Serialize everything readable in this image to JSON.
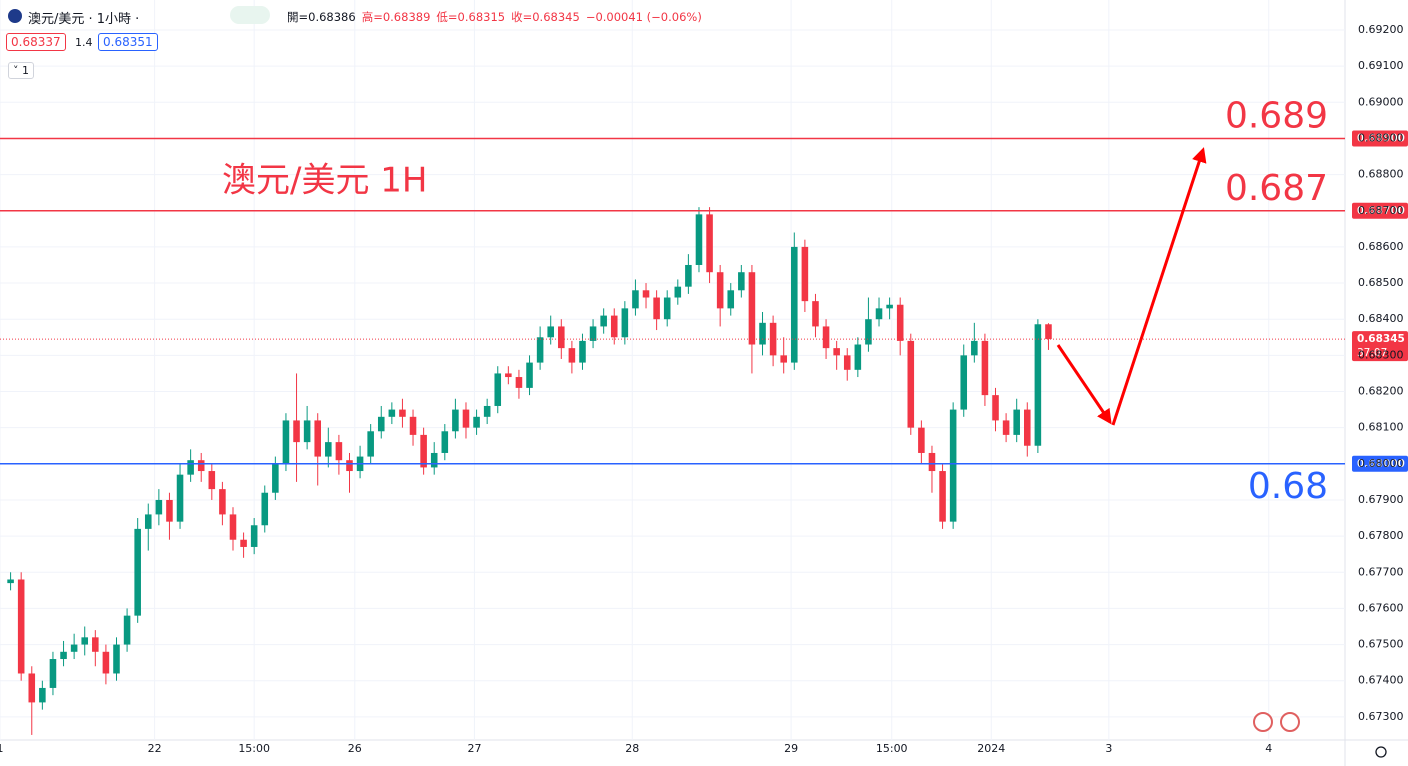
{
  "header": {
    "symbol": "澳元/美元 · 1小時 ·",
    "ohlc": [
      "開=0.68386",
      "高=0.68389",
      "低=0.68315",
      "收=0.68345",
      "−0.00041 (−0.06%)"
    ],
    "bid": "0.68337",
    "spread": "1.4",
    "ask": "0.68351",
    "indicator": "1"
  },
  "chart_data": {
    "type": "candlestick",
    "annotation": "澳元/美元 1H",
    "up_color": "#089981",
    "down_color": "#f23645",
    "grid": true,
    "x": [
      1,
      2,
      3,
      4,
      5,
      6,
      7,
      8,
      9,
      10,
      11,
      12,
      13,
      14,
      15,
      16,
      17,
      18,
      19,
      20,
      21,
      22,
      23,
      24,
      25,
      26,
      27,
      28,
      29,
      30,
      31,
      32,
      33,
      34,
      35,
      36,
      37,
      38,
      39,
      40,
      41,
      42,
      43,
      44,
      45,
      46,
      47,
      48,
      49,
      50,
      51,
      52,
      53,
      54,
      55,
      56,
      57,
      58,
      59,
      60,
      61,
      62,
      63,
      64,
      65,
      66,
      67,
      68,
      69,
      70,
      71,
      72,
      73,
      74,
      75,
      76,
      77,
      78,
      79,
      80,
      81,
      82,
      83,
      84,
      85,
      86,
      87,
      88,
      89,
      90,
      91,
      92,
      93,
      94,
      95,
      96,
      97,
      98,
      99
    ],
    "open": [
      0.6767,
      0.6768,
      0.6742,
      0.6734,
      0.6738,
      0.6746,
      0.6748,
      0.675,
      0.6752,
      0.6748,
      0.6742,
      0.675,
      0.6758,
      0.6782,
      0.6786,
      0.679,
      0.6784,
      0.6797,
      0.6801,
      0.6798,
      0.6793,
      0.6786,
      0.6779,
      0.6777,
      0.6783,
      0.6792,
      0.68,
      0.6812,
      0.6806,
      0.6812,
      0.6802,
      0.6806,
      0.6801,
      0.6798,
      0.6802,
      0.6809,
      0.6813,
      0.6815,
      0.6813,
      0.6808,
      0.6799,
      0.6803,
      0.6809,
      0.6815,
      0.681,
      0.6813,
      0.6816,
      0.6825,
      0.6824,
      0.6821,
      0.6828,
      0.6835,
      0.6838,
      0.6832,
      0.6828,
      0.6834,
      0.6838,
      0.6841,
      0.6835,
      0.6843,
      0.6848,
      0.6846,
      0.684,
      0.6846,
      0.6849,
      0.6855,
      0.6869,
      0.6853,
      0.6843,
      0.6848,
      0.6853,
      0.6833,
      0.6839,
      0.683,
      0.6828,
      0.686,
      0.6845,
      0.6838,
      0.6832,
      0.683,
      0.6826,
      0.6833,
      0.684,
      0.6843,
      0.6844,
      0.6834,
      0.681,
      0.6803,
      0.6798,
      0.6784,
      0.6815,
      0.683,
      0.6834,
      0.6819,
      0.6812,
      0.6808,
      0.6815,
      0.6805,
      0.68386
    ],
    "high": [
      0.677,
      0.677,
      0.6744,
      0.674,
      0.6748,
      0.6751,
      0.6753,
      0.6755,
      0.6754,
      0.675,
      0.6752,
      0.676,
      0.6785,
      0.6789,
      0.6793,
      0.6792,
      0.68,
      0.6804,
      0.6803,
      0.68,
      0.6795,
      0.6788,
      0.6781,
      0.6785,
      0.6794,
      0.6802,
      0.6814,
      0.6825,
      0.6816,
      0.6814,
      0.681,
      0.6808,
      0.6803,
      0.6805,
      0.6811,
      0.6816,
      0.6817,
      0.6818,
      0.6815,
      0.681,
      0.6806,
      0.6811,
      0.6818,
      0.6817,
      0.6815,
      0.6818,
      0.6827,
      0.6827,
      0.6826,
      0.683,
      0.6838,
      0.6841,
      0.684,
      0.6834,
      0.6836,
      0.684,
      0.6843,
      0.6843,
      0.6845,
      0.6851,
      0.685,
      0.6848,
      0.6848,
      0.6851,
      0.6858,
      0.6871,
      0.6871,
      0.6855,
      0.685,
      0.6855,
      0.6855,
      0.6842,
      0.6841,
      0.6835,
      0.6864,
      0.6862,
      0.6847,
      0.684,
      0.6834,
      0.6832,
      0.6835,
      0.6846,
      0.6846,
      0.6846,
      0.6846,
      0.6836,
      0.6812,
      0.6805,
      0.68,
      0.6817,
      0.6833,
      0.6839,
      0.6836,
      0.6821,
      0.6814,
      0.6818,
      0.6817,
      0.684,
      0.68389
    ],
    "low": [
      0.6765,
      0.674,
      0.6725,
      0.6732,
      0.6736,
      0.6744,
      0.6746,
      0.6747,
      0.6744,
      0.6739,
      0.674,
      0.6748,
      0.6756,
      0.6776,
      0.6783,
      0.6779,
      0.6782,
      0.6795,
      0.6795,
      0.679,
      0.6783,
      0.6776,
      0.6774,
      0.6775,
      0.6781,
      0.679,
      0.6798,
      0.6795,
      0.6804,
      0.6794,
      0.6799,
      0.6797,
      0.6792,
      0.6796,
      0.68,
      0.6807,
      0.6811,
      0.681,
      0.6805,
      0.6797,
      0.6797,
      0.6801,
      0.6807,
      0.6807,
      0.6808,
      0.6811,
      0.6814,
      0.6822,
      0.6818,
      0.6819,
      0.6826,
      0.6833,
      0.6829,
      0.6825,
      0.6826,
      0.6832,
      0.6836,
      0.6833,
      0.6833,
      0.6841,
      0.6843,
      0.6837,
      0.6838,
      0.6844,
      0.6847,
      0.6853,
      0.685,
      0.6838,
      0.6841,
      0.6846,
      0.6825,
      0.683,
      0.6827,
      0.6825,
      0.6826,
      0.6842,
      0.6835,
      0.6829,
      0.6826,
      0.6823,
      0.6824,
      0.6831,
      0.6838,
      0.684,
      0.683,
      0.6808,
      0.68,
      0.6792,
      0.6782,
      0.6782,
      0.6813,
      0.6828,
      0.6816,
      0.6809,
      0.6806,
      0.6806,
      0.6802,
      0.6803,
      0.68315
    ],
    "close": [
      0.6768,
      0.6742,
      0.6734,
      0.6738,
      0.6746,
      0.6748,
      0.675,
      0.6752,
      0.6748,
      0.6742,
      0.675,
      0.6758,
      0.6782,
      0.6786,
      0.679,
      0.6784,
      0.6797,
      0.6801,
      0.6798,
      0.6793,
      0.6786,
      0.6779,
      0.6777,
      0.6783,
      0.6792,
      0.68,
      0.6812,
      0.6806,
      0.6812,
      0.6802,
      0.6806,
      0.6801,
      0.6798,
      0.6802,
      0.6809,
      0.6813,
      0.6815,
      0.6813,
      0.6808,
      0.6799,
      0.6803,
      0.6809,
      0.6815,
      0.681,
      0.6813,
      0.6816,
      0.6825,
      0.6824,
      0.6821,
      0.6828,
      0.6835,
      0.6838,
      0.6832,
      0.6828,
      0.6834,
      0.6838,
      0.6841,
      0.6835,
      0.6843,
      0.6848,
      0.6846,
      0.684,
      0.6846,
      0.6849,
      0.6855,
      0.6869,
      0.6853,
      0.6843,
      0.6848,
      0.6853,
      0.6833,
      0.6839,
      0.683,
      0.6828,
      0.686,
      0.6845,
      0.6838,
      0.6832,
      0.683,
      0.6826,
      0.6833,
      0.684,
      0.6843,
      0.6844,
      0.6834,
      0.681,
      0.6803,
      0.6798,
      0.6784,
      0.6815,
      0.683,
      0.6834,
      0.6819,
      0.6812,
      0.6808,
      0.6815,
      0.6805,
      0.68386,
      0.68345
    ],
    "xlim": [
      0,
      127
    ],
    "xticks": [
      {
        "value": 0,
        "label": "1"
      },
      {
        "value": 14.6,
        "label": "22"
      },
      {
        "value": 24,
        "label": "15:00"
      },
      {
        "value": 33.5,
        "label": "26"
      },
      {
        "value": 44.8,
        "label": "27"
      },
      {
        "value": 59.7,
        "label": "28"
      },
      {
        "value": 74.7,
        "label": "29"
      },
      {
        "value": 84.2,
        "label": "15:00"
      },
      {
        "value": 93.6,
        "label": "2024"
      },
      {
        "value": 104.7,
        "label": "3"
      },
      {
        "value": 119.8,
        "label": "4"
      }
    ],
    "ylim": [
      0.67236,
      0.69283
    ],
    "yticks": [
      {
        "value": 0.692,
        "label": "0.69200"
      },
      {
        "value": 0.691,
        "label": "0.69100"
      },
      {
        "value": 0.69,
        "label": "0.69000"
      },
      {
        "value": 0.689,
        "label": "0.68900"
      },
      {
        "value": 0.688,
        "label": "0.68800"
      },
      {
        "value": 0.687,
        "label": "0.68700"
      },
      {
        "value": 0.686,
        "label": "0.68600"
      },
      {
        "value": 0.685,
        "label": "0.68500"
      },
      {
        "value": 0.684,
        "label": "0.68400"
      },
      {
        "value": 0.683,
        "label": "0.68300"
      },
      {
        "value": 0.682,
        "label": "0.68200"
      },
      {
        "value": 0.681,
        "label": "0.68100"
      },
      {
        "value": 0.68,
        "label": "0.68000"
      },
      {
        "value": 0.679,
        "label": "0.67900"
      },
      {
        "value": 0.678,
        "label": "0.67800"
      },
      {
        "value": 0.677,
        "label": "0.67700"
      },
      {
        "value": 0.676,
        "label": "0.67600"
      },
      {
        "value": 0.675,
        "label": "0.67500"
      },
      {
        "value": 0.674,
        "label": "0.67400"
      },
      {
        "value": 0.673,
        "label": "0.67300"
      }
    ],
    "levels": [
      {
        "value": 0.689,
        "tag": "0.68900",
        "color": "#f23645"
      },
      {
        "value": 0.687,
        "tag": "0.68700",
        "color": "#f23645"
      },
      {
        "value": 0.68,
        "tag": "0.68000",
        "color": "#2962ff"
      }
    ],
    "last_price": {
      "value": 0.68345,
      "countdown": "37:07",
      "color": "#f23645"
    }
  }
}
